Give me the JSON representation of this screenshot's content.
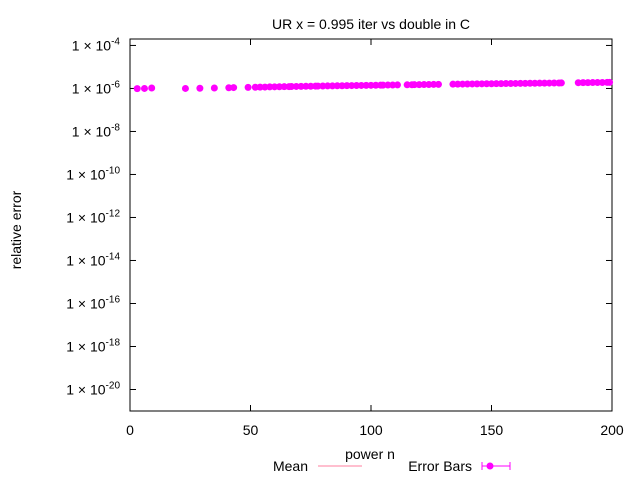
{
  "chart_data": {
    "type": "scatter",
    "title": "UR x = 0.995 iter vs double in C",
    "xlabel": "power n",
    "ylabel": "relative error",
    "xlim": [
      0,
      200
    ],
    "ylim_exponent": [
      -21,
      -3.7
    ],
    "log_y": true,
    "grid": false,
    "legend_position": "bottom-center",
    "x_ticks": [
      0,
      50,
      100,
      150,
      200
    ],
    "y_tick_exponents": [
      -4,
      -6,
      -8,
      -10,
      -12,
      -14,
      -16,
      -18,
      -20
    ],
    "y_tick_prefix": "1 × 10",
    "legend": [
      {
        "label": "Mean",
        "style": "line",
        "color": "#ff7f9f"
      },
      {
        "label": "Error Bars",
        "style": "point-errorbar",
        "color": "#ff00ff"
      }
    ],
    "series": [
      {
        "name": "Error Bars",
        "color": "#ff00ff",
        "x": [
          3,
          6,
          9,
          23,
          29,
          35,
          41,
          43,
          49,
          52,
          54,
          56,
          58,
          60,
          62,
          64,
          66,
          67,
          69,
          71,
          73,
          75,
          77,
          78,
          80,
          82,
          84,
          86,
          88,
          90,
          92,
          94,
          96,
          98,
          100,
          102,
          104,
          105,
          107,
          109,
          111,
          115,
          117,
          118,
          120,
          122,
          124,
          126,
          128,
          134,
          136,
          138,
          140,
          142,
          144,
          146,
          148,
          150,
          152,
          154,
          156,
          158,
          160,
          162,
          164,
          166,
          168,
          170,
          172,
          174,
          176,
          178,
          179,
          186,
          188,
          190,
          192,
          194,
          196,
          198,
          199
        ],
        "y": [
          9.8e-07,
          1e-06,
          1.05e-06,
          1e-06,
          1.02e-06,
          1.05e-06,
          1.08e-06,
          1.1e-06,
          1.12e-06,
          1.14e-06,
          1.15e-06,
          1.16e-06,
          1.18e-06,
          1.19e-06,
          1.2e-06,
          1.21e-06,
          1.22e-06,
          1.23e-06,
          1.24e-06,
          1.25e-06,
          1.26e-06,
          1.27e-06,
          1.28e-06,
          1.29e-06,
          1.3e-06,
          1.31e-06,
          1.32e-06,
          1.33e-06,
          1.34e-06,
          1.35e-06,
          1.36e-06,
          1.37e-06,
          1.38e-06,
          1.39e-06,
          1.4e-06,
          1.41e-06,
          1.42e-06,
          1.43e-06,
          1.44e-06,
          1.45e-06,
          1.46e-06,
          1.48e-06,
          1.49e-06,
          1.5e-06,
          1.51e-06,
          1.52e-06,
          1.53e-06,
          1.54e-06,
          1.55e-06,
          1.58e-06,
          1.59e-06,
          1.6e-06,
          1.61e-06,
          1.62e-06,
          1.63e-06,
          1.64e-06,
          1.65e-06,
          1.66e-06,
          1.67e-06,
          1.68e-06,
          1.69e-06,
          1.7e-06,
          1.71e-06,
          1.72e-06,
          1.73e-06,
          1.74e-06,
          1.75e-06,
          1.76e-06,
          1.77e-06,
          1.78e-06,
          1.79e-06,
          1.8e-06,
          1.81e-06,
          1.85e-06,
          1.86e-06,
          1.87e-06,
          1.88e-06,
          1.89e-06,
          1.9e-06,
          1.91e-06,
          1.92e-06
        ]
      }
    ]
  }
}
